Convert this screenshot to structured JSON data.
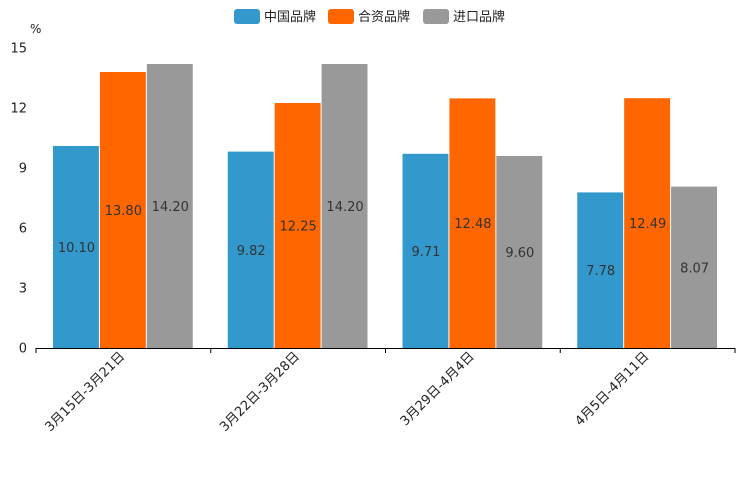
{
  "chart_data": {
    "type": "bar",
    "title": "",
    "ylabel": "%",
    "xlabel": "",
    "ylim": [
      0,
      15
    ],
    "yticks": [
      0,
      3,
      6,
      9,
      12,
      15
    ],
    "grid": false,
    "legend_position": "top-center",
    "categories": [
      "3月15日-3月21日",
      "3月22日-3月28日",
      "3月29日-4月4日",
      "4月5日-4月11日"
    ],
    "series": [
      {
        "name": "中国品牌",
        "color": "#3399cc",
        "values": [
          10.1,
          9.82,
          9.71,
          7.78
        ],
        "labels": [
          "10.10",
          "9.82",
          "9.71",
          "7.78"
        ]
      },
      {
        "name": "合资品牌",
        "color": "#ff6600",
        "values": [
          13.8,
          12.25,
          12.48,
          12.49
        ],
        "labels": [
          "13.80",
          "12.25",
          "12.48",
          "12.49"
        ]
      },
      {
        "name": "进口品牌",
        "color": "#999999",
        "values": [
          14.2,
          14.2,
          9.6,
          8.07
        ],
        "labels": [
          "14.20",
          "14.20",
          "9.60",
          "8.07"
        ]
      }
    ]
  }
}
